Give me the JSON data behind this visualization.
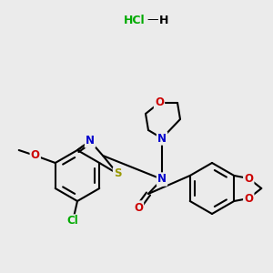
{
  "background_color": "#ebebeb",
  "bond_color": "#000000",
  "atom_colors": {
    "N": "#0000cc",
    "O": "#cc0000",
    "S": "#999900",
    "Cl": "#00aa00"
  },
  "lw": 1.5,
  "fs": 8.5
}
